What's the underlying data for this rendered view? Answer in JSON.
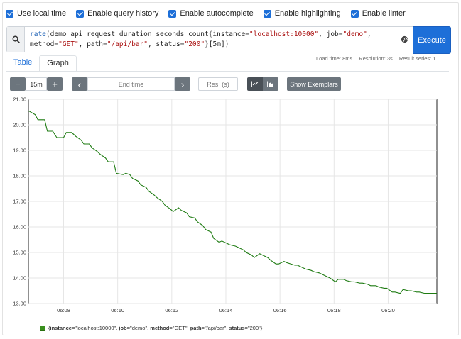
{
  "options": [
    {
      "label": "Use local time",
      "checked": true
    },
    {
      "label": "Enable query history",
      "checked": true
    },
    {
      "label": "Enable autocomplete",
      "checked": true
    },
    {
      "label": "Enable highlighting",
      "checked": true
    },
    {
      "label": "Enable linter",
      "checked": true
    }
  ],
  "query": {
    "fn": "rate",
    "metric": "demo_api_request_duration_seconds_count",
    "labels": [
      {
        "key": "instance",
        "value": "\"localhost:10000\""
      },
      {
        "key": "job",
        "value": "\"demo\""
      },
      {
        "key": "method",
        "value": "\"GET\""
      },
      {
        "key": "path",
        "value": "\"/api/bar\""
      },
      {
        "key": "status",
        "value": "\"200\""
      }
    ],
    "range": "[5m]",
    "execute_label": "Execute",
    "search_icon": "search-icon",
    "globe_icon": "globe-icon"
  },
  "stats": {
    "load_time": "Load time: 8ms",
    "resolution": "Resolution: 3s",
    "result_series": "Result series: 1"
  },
  "tabs": [
    {
      "label": "Table",
      "active": false
    },
    {
      "label": "Graph",
      "active": true
    }
  ],
  "controls": {
    "minus_label": "−",
    "range_value": "15m",
    "plus_label": "+",
    "prev_label": "‹",
    "end_time_placeholder": "End time",
    "next_label": "›",
    "res_placeholder": "Res. (s)",
    "line_icon": "line-chart-icon",
    "stacked_icon": "stacked-chart-icon",
    "exemplars_label": "Show Exemplars"
  },
  "chart_data": {
    "type": "line",
    "ylim": [
      13.0,
      21.0
    ],
    "yticks": [
      "13.00",
      "14.00",
      "15.00",
      "16.00",
      "17.00",
      "18.00",
      "19.00",
      "20.00",
      "21.00"
    ],
    "xticks": [
      "06:08",
      "06:10",
      "06:12",
      "06:14",
      "06:16",
      "06:18",
      "06:20"
    ],
    "x_minutes": [
      6.7,
      21.8
    ],
    "series": [
      {
        "color": "#1e7b12",
        "x": [
          6.7,
          6.95,
          7.05,
          7.3,
          7.4,
          7.6,
          7.75,
          8.0,
          8.1,
          8.3,
          8.45,
          8.65,
          8.75,
          8.95,
          9.05,
          9.25,
          9.35,
          9.55,
          9.65,
          9.85,
          9.95,
          10.2,
          10.3,
          10.45,
          10.55,
          10.75,
          10.85,
          11.05,
          11.15,
          11.35,
          11.45,
          11.65,
          11.75,
          11.95,
          12.05,
          12.25,
          12.35,
          12.55,
          12.65,
          12.85,
          12.95,
          13.15,
          13.25,
          13.45,
          13.55,
          13.75,
          13.85,
          14.05,
          14.15,
          14.35,
          14.45,
          14.65,
          14.75,
          14.95,
          15.05,
          15.25,
          15.35,
          15.55,
          15.65,
          15.85,
          15.95,
          16.15,
          16.25,
          16.55,
          16.65,
          16.85,
          16.95,
          17.15,
          17.25,
          17.45,
          17.55,
          17.75,
          17.85,
          18.05,
          18.15,
          18.35,
          18.45,
          18.65,
          18.75,
          18.95,
          19.05,
          19.25,
          19.35,
          19.55,
          19.65,
          19.85,
          19.95,
          20.15,
          20.25,
          20.45,
          20.55,
          20.75,
          20.85,
          21.05,
          21.15,
          21.35,
          21.45,
          21.8
        ],
        "y": [
          20.55,
          20.4,
          20.2,
          20.2,
          19.75,
          19.75,
          19.5,
          19.5,
          19.7,
          19.7,
          19.55,
          19.4,
          19.25,
          19.25,
          19.1,
          18.95,
          18.85,
          18.7,
          18.55,
          18.55,
          18.1,
          18.05,
          18.1,
          18.05,
          17.9,
          17.8,
          17.65,
          17.55,
          17.4,
          17.25,
          17.15,
          17.0,
          16.85,
          16.7,
          16.6,
          16.75,
          16.65,
          16.55,
          16.4,
          16.35,
          16.2,
          16.05,
          15.9,
          15.8,
          15.55,
          15.4,
          15.45,
          15.35,
          15.3,
          15.25,
          15.2,
          15.1,
          15.0,
          14.9,
          14.8,
          14.95,
          14.9,
          14.8,
          14.7,
          14.55,
          14.55,
          14.65,
          14.6,
          14.5,
          14.5,
          14.4,
          14.35,
          14.3,
          14.25,
          14.2,
          14.15,
          14.05,
          14.0,
          13.85,
          13.95,
          13.95,
          13.9,
          13.85,
          13.85,
          13.8,
          13.8,
          13.75,
          13.7,
          13.7,
          13.65,
          13.6,
          13.6,
          13.45,
          13.45,
          13.4,
          13.55,
          13.5,
          13.5,
          13.45,
          13.45,
          13.4,
          13.4,
          13.4
        ]
      }
    ],
    "legend": {
      "instance": "\"localhost:10000\"",
      "job": "\"demo\"",
      "method": "\"GET\"",
      "path": "\"/api/bar\"",
      "status": "\"200\""
    }
  }
}
